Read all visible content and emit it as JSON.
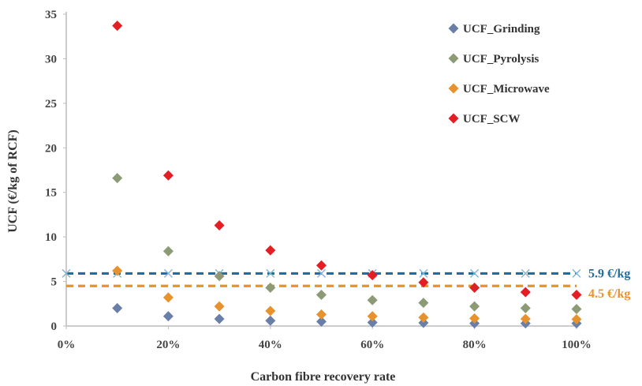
{
  "chart_data": {
    "type": "scatter",
    "xlabel": "Carbon fibre recovery rate",
    "ylabel": "UCF (€/kg of RCF)",
    "xlim": [
      0,
      1
    ],
    "ylim": [
      0,
      35
    ],
    "x_ticks": [
      "0%",
      "20%",
      "40%",
      "60%",
      "80%",
      "100%"
    ],
    "y_ticks": [
      "0",
      "5",
      "10",
      "15",
      "20",
      "25",
      "30",
      "35"
    ],
    "x": [
      0.1,
      0.2,
      0.3,
      0.4,
      0.5,
      0.6,
      0.7,
      0.8,
      0.9,
      1.0
    ],
    "series": [
      {
        "name": "UCF_Grinding",
        "color": "#6a7fa8",
        "marker": "diamond",
        "values": [
          2.0,
          1.1,
          0.8,
          0.6,
          0.5,
          0.4,
          0.35,
          0.3,
          0.3,
          0.3
        ]
      },
      {
        "name": "UCF_Pyrolysis",
        "color": "#8c9a76",
        "marker": "diamond",
        "values": [
          16.6,
          8.4,
          5.6,
          4.3,
          3.5,
          2.9,
          2.6,
          2.2,
          2.0,
          1.9
        ]
      },
      {
        "name": "UCF_Microwave",
        "color": "#e8922e",
        "marker": "diamond",
        "values": [
          6.2,
          3.2,
          2.2,
          1.7,
          1.3,
          1.1,
          0.95,
          0.85,
          0.8,
          0.75
        ]
      },
      {
        "name": "UCF_SCW",
        "color": "#e31e24",
        "marker": "diamond",
        "values": [
          33.7,
          16.9,
          11.3,
          8.5,
          6.8,
          5.7,
          4.9,
          4.3,
          3.8,
          3.5
        ]
      }
    ],
    "reference_lines": [
      {
        "label": "5.9 €/kg",
        "value": 5.9,
        "color": "#1f6e9e",
        "marker": "x"
      },
      {
        "label": "4.5 €/kg",
        "value": 4.5,
        "color": "#e8922e",
        "marker": "none"
      }
    ],
    "grid": false,
    "legend_position": "top-right"
  }
}
